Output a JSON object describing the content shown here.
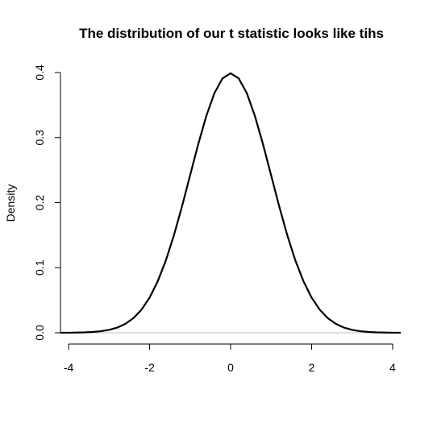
{
  "chart_data": {
    "type": "line",
    "title": "The distribution of our t statistic looks like tihs",
    "xlabel": "",
    "ylabel": "Density",
    "xlim": [
      -4.2,
      4.2
    ],
    "ylim": [
      0,
      0.4
    ],
    "x_ticks": [
      "-4",
      "-2",
      "0",
      "2",
      "4"
    ],
    "y_ticks": [
      "0.0",
      "0.1",
      "0.2",
      "0.3",
      "0.4"
    ],
    "baseline": 0,
    "grid": false,
    "series": [
      {
        "x": [
          -4.2,
          -4.0,
          -3.8,
          -3.6,
          -3.4,
          -3.2,
          -3.0,
          -2.8,
          -2.6,
          -2.4,
          -2.2,
          -2.0,
          -1.8,
          -1.6,
          -1.4,
          -1.2,
          -1.0,
          -0.8,
          -0.6,
          -0.4,
          -0.2,
          0.0,
          0.2,
          0.4,
          0.6,
          0.8,
          1.0,
          1.2,
          1.4,
          1.6,
          1.8,
          2.0,
          2.2,
          2.4,
          2.6,
          2.8,
          3.0,
          3.2,
          3.4,
          3.6,
          3.8,
          4.0,
          4.2
        ],
        "y": [
          0.0001,
          0.0001,
          0.0003,
          0.0006,
          0.0012,
          0.0024,
          0.0044,
          0.0079,
          0.0136,
          0.0224,
          0.0355,
          0.054,
          0.079,
          0.1109,
          0.1497,
          0.1942,
          0.242,
          0.2897,
          0.3332,
          0.3683,
          0.391,
          0.3989,
          0.391,
          0.3683,
          0.3332,
          0.2897,
          0.242,
          0.1942,
          0.1497,
          0.1109,
          0.079,
          0.054,
          0.0355,
          0.0224,
          0.0136,
          0.0079,
          0.0044,
          0.0024,
          0.0012,
          0.0006,
          0.0003,
          0.0001,
          0.0001
        ]
      }
    ],
    "colors": {
      "curve": "#000000",
      "baseline": "#bebebe",
      "axes": "#000000"
    }
  }
}
